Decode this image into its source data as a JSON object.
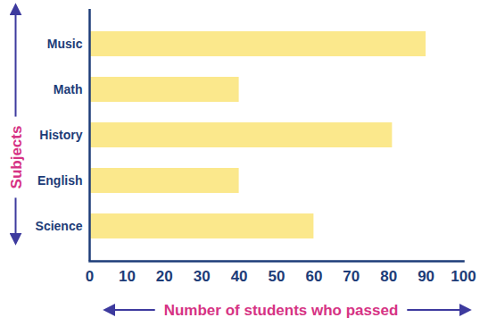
{
  "chart_data": {
    "type": "bar",
    "orientation": "horizontal",
    "categories": [
      "Music",
      "Math",
      "History",
      "English",
      "Science"
    ],
    "values": [
      90,
      40,
      81,
      40,
      60
    ],
    "color": "#fbe88c",
    "xlabel": "Number of students who passed",
    "ylabel": "Subjects",
    "xlim": [
      0,
      100
    ],
    "xticks": [
      0,
      10,
      20,
      30,
      40,
      50,
      60,
      70,
      80,
      90,
      100
    ],
    "grid": false
  }
}
